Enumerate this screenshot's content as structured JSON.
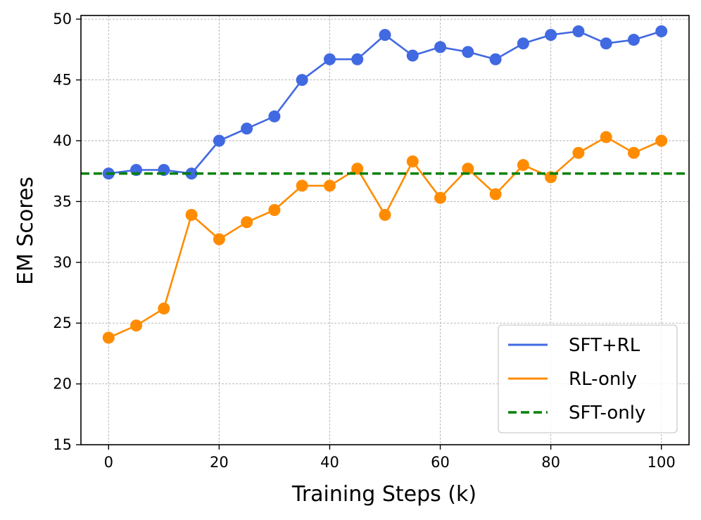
{
  "chart_data": {
    "type": "line",
    "x": [
      0,
      5,
      10,
      15,
      20,
      25,
      30,
      35,
      40,
      45,
      50,
      55,
      60,
      65,
      70,
      75,
      80,
      85,
      90,
      95,
      100
    ],
    "series": [
      {
        "name": "SFT+RL",
        "color": "#4169e1",
        "style": "solid",
        "markers": true,
        "values": [
          37.3,
          37.6,
          37.6,
          37.3,
          40.0,
          41.0,
          42.0,
          45.0,
          46.7,
          46.7,
          48.7,
          47.0,
          47.7,
          47.3,
          46.7,
          48.0,
          48.7,
          49.0,
          48.0,
          48.3,
          49.0
        ]
      },
      {
        "name": "RL-only",
        "color": "#ff8c00",
        "style": "solid",
        "markers": true,
        "values": [
          23.8,
          24.8,
          26.2,
          33.9,
          31.9,
          33.3,
          34.3,
          36.3,
          36.3,
          37.7,
          33.9,
          38.3,
          35.3,
          37.7,
          35.6,
          38.0,
          37.0,
          39.0,
          40.3,
          39.0,
          40.0
        ]
      },
      {
        "name": "SFT-only",
        "color": "#008000",
        "style": "dashed",
        "markers": false,
        "constant": 37.3
      }
    ],
    "title": "",
    "xlabel": "Training Steps (k)",
    "ylabel": "EM Scores",
    "xlim": [
      -5,
      105
    ],
    "ylim": [
      15,
      50.3
    ],
    "xticks": [
      "0",
      "20",
      "40",
      "60",
      "80",
      "100"
    ],
    "yticks": [
      "15",
      "20",
      "25",
      "30",
      "35",
      "40",
      "45",
      "50"
    ],
    "grid": true,
    "legend_position": "bottom-right"
  }
}
